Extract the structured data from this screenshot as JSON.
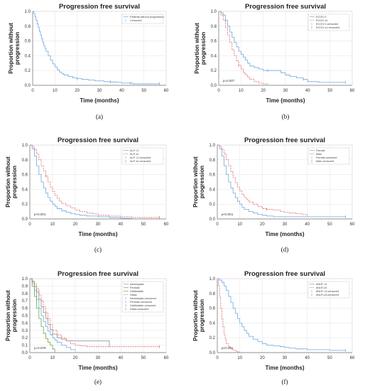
{
  "chart_data": [
    {
      "panel": "(a)",
      "type": "line",
      "step": true,
      "title": "Progression free survival",
      "xlabel": "Time (months)",
      "ylabel_lines": [
        "Proportion without",
        "progression"
      ],
      "xticks": [
        0,
        10,
        20,
        30,
        40,
        50,
        60
      ],
      "yticks": [
        "0.0",
        "0.2",
        "0.4",
        "0.6",
        "0.8",
        "1.0"
      ],
      "xlim": [
        0,
        60
      ],
      "ylim": [
        0,
        1
      ],
      "legend": {
        "position": "top-right",
        "entries": [
          "Patients without progression",
          "Censored"
        ]
      },
      "pvalue": "",
      "series": [
        {
          "name": "Patients without progression",
          "color": "#6fa8dc",
          "style": "solid",
          "x": [
            0,
            0.5,
            1,
            1.5,
            2,
            2.5,
            3,
            3.5,
            4,
            4.5,
            5,
            5.5,
            6,
            7,
            8,
            9,
            10,
            11,
            12,
            13,
            14,
            16,
            18,
            20,
            22,
            25,
            28,
            32,
            35,
            38,
            40,
            45,
            50,
            57
          ],
          "y": [
            1,
            0.97,
            0.93,
            0.88,
            0.83,
            0.78,
            0.73,
            0.68,
            0.63,
            0.58,
            0.54,
            0.5,
            0.46,
            0.4,
            0.34,
            0.29,
            0.25,
            0.21,
            0.18,
            0.16,
            0.14,
            0.12,
            0.1,
            0.09,
            0.08,
            0.07,
            0.06,
            0.05,
            0.045,
            0.04,
            0.03,
            0.02,
            0.02,
            0.02
          ],
          "censored_x": [
            20,
            35,
            44,
            57
          ]
        }
      ]
    },
    {
      "panel": "(b)",
      "type": "line",
      "step": true,
      "title": "Progression free survival",
      "xlabel": "Time (months)",
      "ylabel_lines": [
        "Proportion without",
        "progression"
      ],
      "xticks": [
        0,
        10,
        20,
        30,
        40,
        50,
        60
      ],
      "yticks": [
        "0.0",
        "0.2",
        "0.4",
        "0.6",
        "0.8",
        "1.0"
      ],
      "xlim": [
        0,
        60
      ],
      "ylim": [
        0,
        1
      ],
      "legend": {
        "position": "top-right",
        "entries": [
          "ECOG 0",
          "ECOG ≥1",
          "ECOG 0-censored",
          "ECOG ≥1-censored"
        ]
      },
      "pvalue": "p=0.007",
      "series": [
        {
          "name": "ECOG 0",
          "color": "#6fa8dc",
          "style": "solid",
          "x": [
            0,
            1,
            2,
            3,
            4,
            5,
            6,
            7,
            8,
            9,
            10,
            11,
            12,
            13,
            14,
            16,
            18,
            20,
            22,
            25,
            28,
            30,
            32,
            35,
            38,
            40,
            45,
            57
          ],
          "y": [
            1,
            0.98,
            0.95,
            0.88,
            0.8,
            0.72,
            0.65,
            0.58,
            0.52,
            0.46,
            0.42,
            0.38,
            0.34,
            0.3,
            0.26,
            0.24,
            0.22,
            0.2,
            0.2,
            0.2,
            0.17,
            0.14,
            0.12,
            0.1,
            0.08,
            0.05,
            0.04,
            0.04
          ],
          "censored_x": [
            22,
            38,
            57
          ]
        },
        {
          "name": "ECOG ≥1",
          "color": "#e06666",
          "style": "dashed",
          "x": [
            0,
            1,
            2,
            3,
            4,
            5,
            6,
            7,
            8,
            9,
            10,
            11,
            12,
            13,
            14,
            16,
            18,
            20,
            22
          ],
          "y": [
            1,
            0.95,
            0.88,
            0.78,
            0.68,
            0.58,
            0.48,
            0.4,
            0.33,
            0.27,
            0.22,
            0.17,
            0.14,
            0.11,
            0.08,
            0.05,
            0.03,
            0.02,
            0.01
          ],
          "censored_x": [
            9
          ]
        }
      ]
    },
    {
      "panel": "(c)",
      "type": "line",
      "step": true,
      "title": "Progression free survival",
      "xlabel": "Time (months)",
      "ylabel_lines": [
        "Proportion without",
        "progression"
      ],
      "xticks": [
        0,
        10,
        20,
        30,
        40,
        50,
        60
      ],
      "yticks": [
        "0.0",
        "0.2",
        "0.4",
        "0.6",
        "0.8",
        "1.0"
      ],
      "xlim": [
        0,
        60
      ],
      "ylim": [
        0,
        1
      ],
      "legend": {
        "position": "top-right",
        "entries": [
          "ALP <2",
          "ALP ≥2",
          "ALP <2-censored",
          "ALP ≥2-censored"
        ]
      },
      "pvalue": "p<0.001",
      "series": [
        {
          "name": "ALP <2",
          "color": "#6fa8dc",
          "style": "solid",
          "x": [
            0,
            1,
            2,
            3,
            4,
            5,
            6,
            7,
            8,
            9,
            10,
            11,
            12,
            14,
            16,
            18,
            20,
            22,
            25,
            30,
            35,
            40,
            45
          ],
          "y": [
            1,
            0.95,
            0.85,
            0.72,
            0.6,
            0.5,
            0.42,
            0.35,
            0.29,
            0.24,
            0.2,
            0.17,
            0.14,
            0.11,
            0.09,
            0.07,
            0.06,
            0.05,
            0.04,
            0.03,
            0.02,
            0.01,
            0.01
          ],
          "censored_x": []
        },
        {
          "name": "ALP ≥2",
          "color": "#e06666",
          "style": "dashed",
          "x": [
            0,
            1,
            2,
            3,
            4,
            5,
            6,
            7,
            8,
            9,
            10,
            11,
            12,
            13,
            14,
            16,
            18,
            20,
            22,
            25,
            28,
            30,
            35,
            40,
            45,
            50,
            57
          ],
          "y": [
            1,
            0.98,
            0.94,
            0.88,
            0.8,
            0.72,
            0.65,
            0.58,
            0.5,
            0.43,
            0.37,
            0.32,
            0.28,
            0.24,
            0.21,
            0.18,
            0.15,
            0.12,
            0.1,
            0.08,
            0.07,
            0.05,
            0.04,
            0.03,
            0.02,
            0.02,
            0.02
          ],
          "censored_x": [
            7,
            57
          ]
        }
      ]
    },
    {
      "panel": "(d)",
      "type": "line",
      "step": true,
      "title": "Progression free survival",
      "xlabel": "Time (months)",
      "ylabel_lines": [
        "Proportion without",
        "progression"
      ],
      "xticks": [
        0,
        10,
        20,
        30,
        40,
        50,
        60
      ],
      "yticks": [
        "0.0",
        "0.2",
        "0.4",
        "0.6",
        "0.8",
        "1.0"
      ],
      "xlim": [
        0,
        60
      ],
      "ylim": [
        0,
        1
      ],
      "legend": {
        "position": "top-right",
        "entries": [
          "Female",
          "Male",
          "Female-censored",
          "Male-censored"
        ]
      },
      "pvalue": "p<0.001",
      "series": [
        {
          "name": "Male",
          "color": "#6fa8dc",
          "style": "solid",
          "x": [
            0,
            1,
            2,
            3,
            4,
            5,
            6,
            7,
            8,
            9,
            10,
            11,
            12,
            14,
            16,
            18,
            20,
            22,
            25,
            30,
            35,
            40,
            45,
            50,
            57
          ],
          "y": [
            1,
            0.95,
            0.85,
            0.72,
            0.6,
            0.5,
            0.42,
            0.35,
            0.29,
            0.24,
            0.2,
            0.16,
            0.13,
            0.1,
            0.08,
            0.06,
            0.05,
            0.04,
            0.03,
            0.03,
            0.03,
            0.03,
            0.03,
            0.03,
            0.03
          ],
          "censored_x": [
            57
          ]
        },
        {
          "name": "Female",
          "color": "#e06666",
          "style": "dashed",
          "x": [
            0,
            1,
            2,
            3,
            4,
            5,
            6,
            7,
            8,
            9,
            10,
            11,
            12,
            13,
            14,
            16,
            18,
            20,
            22,
            25,
            28,
            30,
            32,
            35,
            38,
            40
          ],
          "y": [
            1,
            0.98,
            0.94,
            0.88,
            0.8,
            0.72,
            0.64,
            0.56,
            0.49,
            0.43,
            0.38,
            0.33,
            0.29,
            0.26,
            0.23,
            0.2,
            0.17,
            0.14,
            0.13,
            0.12,
            0.1,
            0.09,
            0.08,
            0.07,
            0.06,
            0.03
          ],
          "censored_x": [
            22
          ]
        }
      ]
    },
    {
      "panel": "(e)",
      "type": "line",
      "step": true,
      "title": "Progression free survival",
      "xlabel": "Time (months)",
      "ylabel_lines": [
        "Proportion without",
        "progression"
      ],
      "xticks": [
        0,
        10,
        20,
        30,
        40,
        50,
        60
      ],
      "yticks": [
        "0.0",
        "0.1",
        "0.2",
        "0.3",
        "0.4",
        "0.5",
        "0.6",
        "0.7",
        "0.8",
        "0.9",
        "1.0"
      ],
      "xlim": [
        0,
        60
      ],
      "ylim": [
        0,
        1
      ],
      "legend": {
        "position": "top-right",
        "entries": [
          "Intrahepatic",
          "Perihilar",
          "Gallbladder",
          "Distal",
          "Intrahepatic-censored",
          "Perihilar-censored",
          "Gallbladder-censored",
          "Distal-censored"
        ]
      },
      "pvalue": "p=0.079",
      "series": [
        {
          "name": "Intrahepatic",
          "color": "#6fa8dc",
          "style": "solid",
          "x": [
            0,
            1,
            2,
            3,
            4,
            5,
            6,
            7,
            8,
            9,
            10,
            11,
            12,
            14,
            16,
            18,
            20
          ],
          "y": [
            1,
            0.94,
            0.84,
            0.72,
            0.6,
            0.5,
            0.42,
            0.35,
            0.29,
            0.24,
            0.2,
            0.17,
            0.14,
            0.1,
            0.07,
            0.04,
            0.02
          ],
          "censored_x": []
        },
        {
          "name": "Perihilar",
          "color": "#8a8a8a",
          "style": "solid",
          "x": [
            0,
            1,
            2,
            3,
            4,
            5,
            6,
            7,
            8,
            9,
            10,
            12,
            14,
            16,
            18,
            20,
            22,
            25,
            28,
            30,
            32,
            35
          ],
          "y": [
            1,
            0.96,
            0.9,
            0.82,
            0.72,
            0.62,
            0.54,
            0.46,
            0.38,
            0.31,
            0.25,
            0.2,
            0.18,
            0.16,
            0.16,
            0.16,
            0.16,
            0.16,
            0.16,
            0.16,
            0.16,
            0.08
          ],
          "censored_x": [
            10
          ]
        },
        {
          "name": "Gallbladder",
          "color": "#6aa84f",
          "style": "solid",
          "x": [
            0,
            1,
            2,
            3,
            4,
            5,
            6,
            7,
            8,
            9,
            10,
            11
          ],
          "y": [
            1,
            0.9,
            0.76,
            0.6,
            0.46,
            0.35,
            0.26,
            0.19,
            0.14,
            0.1,
            0.05,
            0
          ],
          "censored_x": []
        },
        {
          "name": "Distal",
          "color": "#e06666",
          "style": "dashed",
          "x": [
            0,
            1,
            2,
            3,
            4,
            5,
            6,
            7,
            8,
            9,
            10,
            12,
            14,
            16,
            18,
            20,
            22,
            25,
            30,
            35,
            40,
            45,
            50,
            57
          ],
          "y": [
            1,
            0.97,
            0.93,
            0.86,
            0.78,
            0.7,
            0.62,
            0.54,
            0.46,
            0.38,
            0.3,
            0.24,
            0.2,
            0.16,
            0.12,
            0.1,
            0.09,
            0.08,
            0.08,
            0.08,
            0.08,
            0.08,
            0.08,
            0.08
          ],
          "censored_x": [
            8,
            57
          ]
        }
      ]
    },
    {
      "panel": "(f)",
      "type": "line",
      "step": true,
      "title": "Progression free survival",
      "xlabel": "Time (months)",
      "ylabel_lines": [
        "Proportion without",
        "progression"
      ],
      "xticks": [
        0,
        10,
        20,
        30,
        40,
        50,
        60
      ],
      "yticks": [
        "0.0",
        "0.2",
        "0.4",
        "0.6",
        "0.8",
        "1.0"
      ],
      "xlim": [
        0,
        60
      ],
      "ylim": [
        0,
        1
      ],
      "legend": {
        "position": "top-right",
        "entries": [
          "dNLR <3",
          "dNLR ≥3",
          "dNLR <3-censored",
          "dNLR ≥3-censored"
        ]
      },
      "pvalue": "p<0.001",
      "series": [
        {
          "name": "dNLR <3",
          "color": "#6fa8dc",
          "style": "solid",
          "x": [
            0,
            1,
            2,
            3,
            4,
            5,
            6,
            7,
            8,
            9,
            10,
            11,
            12,
            13,
            14,
            16,
            18,
            20,
            22,
            25,
            28,
            30,
            32,
            35,
            40,
            45,
            50,
            57
          ],
          "y": [
            1,
            0.98,
            0.95,
            0.9,
            0.84,
            0.76,
            0.68,
            0.6,
            0.53,
            0.46,
            0.4,
            0.35,
            0.3,
            0.26,
            0.22,
            0.18,
            0.15,
            0.12,
            0.1,
            0.09,
            0.08,
            0.07,
            0.06,
            0.05,
            0.04,
            0.04,
            0.03,
            0.03
          ],
          "censored_x": [
            57
          ]
        },
        {
          "name": "dNLR ≥3",
          "color": "#e06666",
          "style": "dashed",
          "x": [
            0,
            0.5,
            1,
            1.5,
            2,
            2.5,
            3,
            3.5,
            4,
            5,
            6,
            7,
            8,
            9,
            10
          ],
          "y": [
            1,
            0.9,
            0.75,
            0.6,
            0.45,
            0.35,
            0.25,
            0.18,
            0.12,
            0.08,
            0.05,
            0.03,
            0.02,
            0.01,
            0
          ],
          "censored_x": []
        }
      ]
    }
  ]
}
